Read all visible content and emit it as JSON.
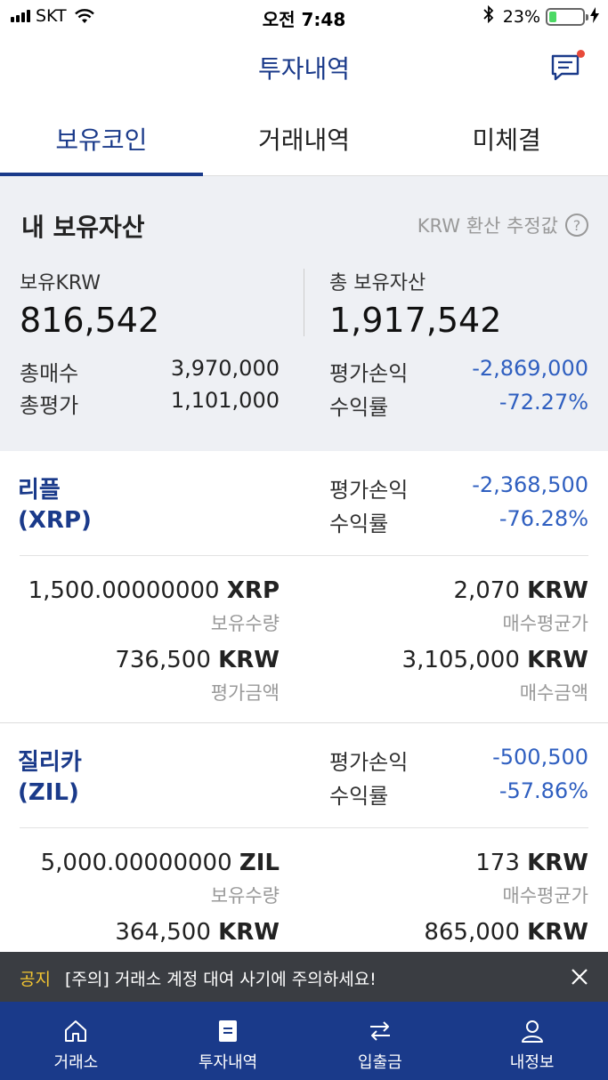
{
  "status_bar": {
    "carrier": "SKT",
    "time": "오전 7:48",
    "battery_percent": "23%",
    "battery_level": 0.23,
    "icons": [
      "signal-icon",
      "wifi-icon",
      "bluetooth-icon",
      "battery-icon",
      "charging-icon"
    ]
  },
  "header": {
    "title": "투자내역",
    "message_icon": "chat-icon"
  },
  "tabs": [
    {
      "label": "보유코인",
      "active": true
    },
    {
      "label": "거래내역",
      "active": false
    },
    {
      "label": "미체결",
      "active": false
    }
  ],
  "summary": {
    "title": "내 보유자산",
    "krw_note": "KRW 환산 추정값",
    "held_krw_label": "보유KRW",
    "held_krw_value": "816,542",
    "total_assets_label": "총 보유자산",
    "total_assets_value": "1,917,542",
    "total_buy_label": "총매수",
    "total_buy_value": "3,970,000",
    "total_eval_label": "총평가",
    "total_eval_value": "1,101,000",
    "pnl_label": "평가손익",
    "pnl_value": "-2,869,000",
    "return_label": "수익률",
    "return_value": "-72.27%"
  },
  "coins": [
    {
      "name": "리플",
      "symbol": "(XRP)",
      "pnl_label": "평가손익",
      "pnl_value": "-2,368,500",
      "return_label": "수익률",
      "return_value": "-76.28%",
      "qty_num": "1,500.00000000",
      "qty_unit": "XRP",
      "qty_label": "보유수량",
      "avg_num": "2,070",
      "avg_unit": "KRW",
      "avg_label": "매수평균가",
      "eval_num": "736,500",
      "eval_unit": "KRW",
      "eval_label": "평가금액",
      "buy_num": "3,105,000",
      "buy_unit": "KRW",
      "buy_label": "매수금액"
    },
    {
      "name": "질리카",
      "symbol": "(ZIL)",
      "pnl_label": "평가손익",
      "pnl_value": "-500,500",
      "return_label": "수익률",
      "return_value": "-57.86%",
      "qty_num": "5,000.00000000",
      "qty_unit": "ZIL",
      "qty_label": "보유수량",
      "avg_num": "173",
      "avg_unit": "KRW",
      "avg_label": "매수평균가",
      "eval_num": "364,500",
      "eval_unit": "KRW",
      "buy_num": "865,000",
      "buy_unit": "KRW"
    }
  ],
  "notice": {
    "tag": "공지",
    "text": "[주의] 거래소 계정 대여 사기에 주의하세요!"
  },
  "bottom_nav": [
    {
      "label": "거래소",
      "icon": "home-icon"
    },
    {
      "label": "투자내역",
      "icon": "document-icon"
    },
    {
      "label": "입출금",
      "icon": "transfer-icon"
    },
    {
      "label": "내정보",
      "icon": "user-icon"
    }
  ],
  "colors": {
    "brand": "#1a3a8a",
    "negative": "#2f5fc0",
    "summary_bg": "#eef0f4",
    "notice_tag": "#f3c531"
  }
}
